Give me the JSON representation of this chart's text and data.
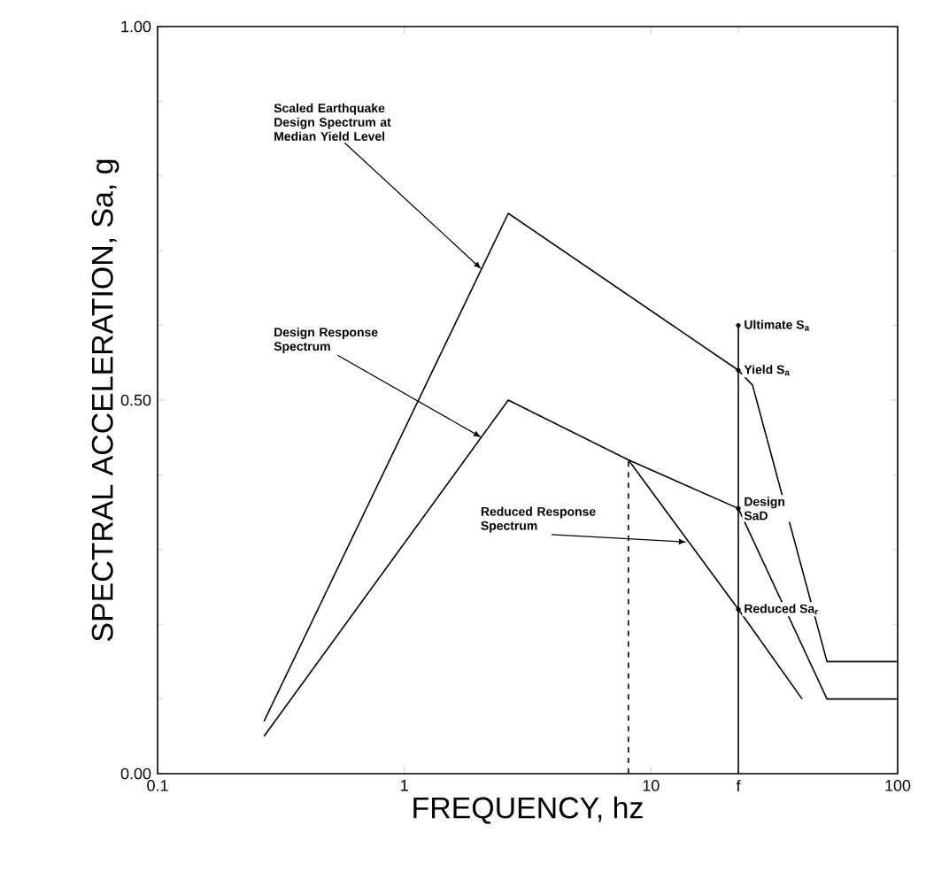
{
  "chart_data": {
    "type": "line",
    "xlabel": "FREQUENCY, hz",
    "ylabel": "SPECTRAL ACCELERATION, Sa, g",
    "log": "x",
    "xlim": [
      0.1,
      100
    ],
    "xticks": [
      0.1,
      1,
      10,
      {
        "value": 22.6,
        "label": "f"
      },
      100
    ],
    "ylim": [
      0,
      1
    ],
    "yticks": [
      {
        "value": 0,
        "label": "0.00"
      },
      {
        "value": 0.5,
        "label": "0.50"
      },
      {
        "value": 1,
        "label": "1.00"
      }
    ],
    "grid": false,
    "series": [
      {
        "color": "#000000",
        "x": [
          0.27,
          2.64,
          22.6,
          25.8,
          51.7,
          100
        ],
        "values": [
          0.07,
          0.75,
          0.54,
          0.52,
          0.15,
          0.15
        ]
      },
      {
        "color": "#000000",
        "x": [
          0.27,
          2.64,
          8.1,
          22.6,
          51.7,
          100
        ],
        "values": [
          0.05,
          0.5,
          0.42,
          0.355,
          0.1,
          0.1
        ]
      },
      {
        "color": "#000000",
        "x": [
          8.1,
          22.6,
          41
        ],
        "values": [
          0.42,
          0.22,
          0.1
        ]
      },
      {
        "color": "#000000",
        "line_style": "dashed",
        "x": [
          8.1,
          8.1
        ],
        "values": [
          0,
          0.42
        ]
      },
      {
        "color": "#000000",
        "x": [
          22.6,
          22.6
        ],
        "values": [
          0,
          0.6
        ]
      }
    ],
    "annotations": [
      {
        "text": "Scaled Earthquake Design Spectrum at Median Yield Level",
        "x": 2.06,
        "y": 0.675
      },
      {
        "text": "Design Response Spectrum",
        "x": 2.06,
        "y": 0.45
      },
      {
        "text": "Reduced Response Spectrum",
        "x": 14,
        "y": 0.31
      },
      {
        "text": "Ultimate S$_{a}$",
        "x": 22.6,
        "y": 0.6
      },
      {
        "text": "Yield S$_{a}$",
        "x": 22.6,
        "y": 0.54
      },
      {
        "text": "Design SaD",
        "x": 22.6,
        "y": 0.355
      },
      {
        "text": "Reduced Sa$_{r}$",
        "x": 22.6,
        "y": 0.22
      }
    ]
  }
}
